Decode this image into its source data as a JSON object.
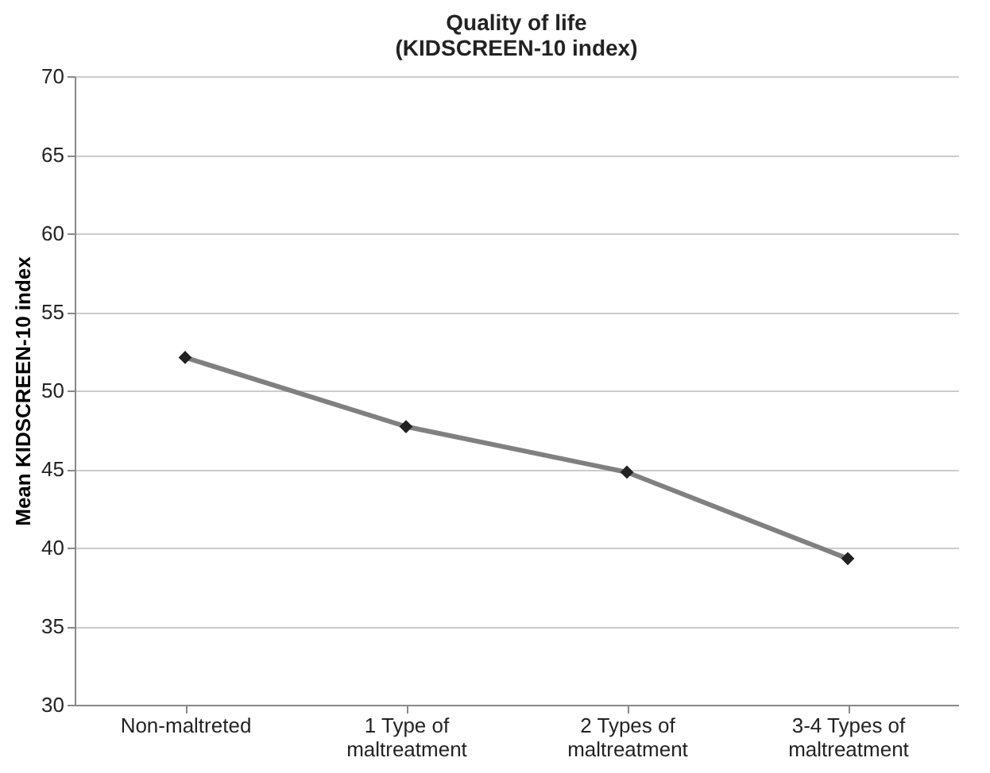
{
  "chart_data": {
    "type": "line",
    "title": "Quality of life\n(KIDSCREEN-10 index)",
    "ylabel": "Mean KIDSCREEN-10 index",
    "categories": [
      "Non-maltreted",
      "1 Type of\nmaltreatment",
      "2 Types of\nmaltreatment",
      "3-4 Types of\nmaltreatment"
    ],
    "series": [
      {
        "color": "#808080",
        "values": [
          52.1,
          47.7,
          44.8,
          39.3
        ]
      }
    ],
    "ylim": [
      30,
      70
    ],
    "yticks": [
      30,
      35,
      40,
      45,
      50,
      55,
      60,
      65,
      70
    ],
    "grid": "y",
    "marker": "diamond",
    "line_style": "solid",
    "legend": false
  }
}
